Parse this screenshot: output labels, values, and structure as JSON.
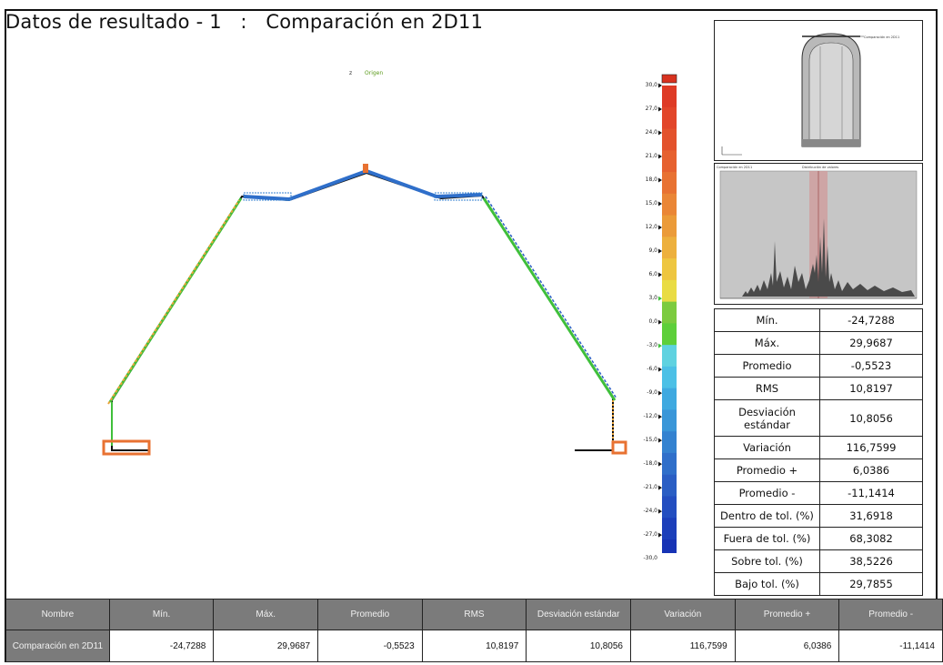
{
  "title": "Datos de resultado - 1   :   Comparación en 2D11",
  "axis_labels": {
    "z": "z",
    "origin": "Origen"
  },
  "thumbnail": {
    "label": "Comparación en 2D11"
  },
  "histogram": {
    "header_left": "Comparación en 2D11",
    "header_center": "Distribución de valores"
  },
  "color_scale": {
    "labels": [
      "30,0",
      "27,0",
      "24,0",
      "21,0",
      "18,0",
      "15,0",
      "12,0",
      "9,0",
      "6,0",
      "3,0",
      "0,0",
      "-3,0",
      "-6,0",
      "-9,0",
      "-12,0",
      "-15,0",
      "-18,0",
      "-21,0",
      "-24,0",
      "-27,0",
      "-30,0"
    ],
    "colors": [
      "#de3b26",
      "#e2462a",
      "#e3522c",
      "#e6612f",
      "#e87232",
      "#ea8636",
      "#eb9b39",
      "#edb03d",
      "#eec640",
      "#e9dc44",
      "#7ccb3f",
      "#5dcf3a",
      "#5fd2e0",
      "#4cc0e6",
      "#3fa9e0",
      "#3a96d8",
      "#3482d0",
      "#2f6fca",
      "#2a5ec4",
      "#234ec0",
      "#1c3fba",
      "#1733b5"
    ],
    "over_color": "#d8321f",
    "under_color": "#0d22c2"
  },
  "stats": [
    {
      "label": "Mín.",
      "value": "-24,7288"
    },
    {
      "label": "Máx.",
      "value": "29,9687"
    },
    {
      "label": "Promedio",
      "value": "-0,5523"
    },
    {
      "label": "RMS",
      "value": "10,8197"
    },
    {
      "label": "Desviación estándar",
      "value": "10,8056"
    },
    {
      "label": "Variación",
      "value": "116,7599"
    },
    {
      "label": "Promedio +",
      "value": "6,0386"
    },
    {
      "label": "Promedio -",
      "value": "-11,1414"
    },
    {
      "label": "Dentro de tol. (%)",
      "value": "31,6918"
    },
    {
      "label": "Fuera de tol. (%)",
      "value": "68,3082"
    },
    {
      "label": "Sobre tol. (%)",
      "value": "38,5226"
    },
    {
      "label": "Bajo tol. (%)",
      "value": "29,7855"
    }
  ],
  "table": {
    "headers": [
      "Nombre",
      "Mín.",
      "Máx.",
      "Promedio",
      "RMS",
      "Desviación estándar",
      "Variación",
      "Promedio +",
      "Promedio -"
    ],
    "rows": [
      [
        "Comparación en 2D11",
        "-24,7288",
        "29,9687",
        "-0,5523",
        "10,8197",
        "10,8056",
        "116,7599",
        "6,0386",
        "-11,1414"
      ]
    ]
  }
}
